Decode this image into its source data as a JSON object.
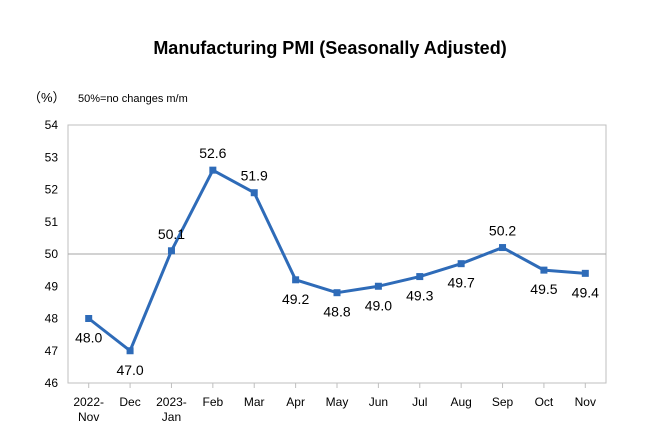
{
  "chart_data": {
    "type": "line",
    "title": "Manufacturing PMI (Seasonally Adjusted)",
    "unit_label": "（%）",
    "note": "50%=no changes m/m",
    "categories": [
      [
        "2022-",
        "Nov"
      ],
      [
        "Dec"
      ],
      [
        "2023-",
        "Jan"
      ],
      [
        "Feb"
      ],
      [
        "Mar"
      ],
      [
        "Apr"
      ],
      [
        "May"
      ],
      [
        "Jun"
      ],
      [
        "Jul"
      ],
      [
        "Aug"
      ],
      [
        "Sep"
      ],
      [
        "Oct"
      ],
      [
        "Nov"
      ]
    ],
    "series": [
      {
        "values": [
          48.0,
          47.0,
          50.1,
          52.6,
          51.9,
          49.2,
          48.8,
          49.0,
          49.3,
          49.7,
          50.2,
          49.5,
          49.4
        ]
      }
    ],
    "data_labels": [
      "48.0",
      "47.0",
      "50.1",
      "52.6",
      "51.9",
      "49.2",
      "48.8",
      "49.0",
      "49.3",
      "49.7",
      "50.2",
      "49.5",
      "49.4"
    ],
    "ylim": [
      46,
      54
    ],
    "yticks": [
      46,
      47,
      48,
      49,
      50,
      51,
      52,
      53,
      54
    ],
    "reference_line": 50,
    "grid": false,
    "colors": {
      "series": "#2e6bb8",
      "reference": "#a6a6a6",
      "axis": "#bfbfbf"
    }
  }
}
